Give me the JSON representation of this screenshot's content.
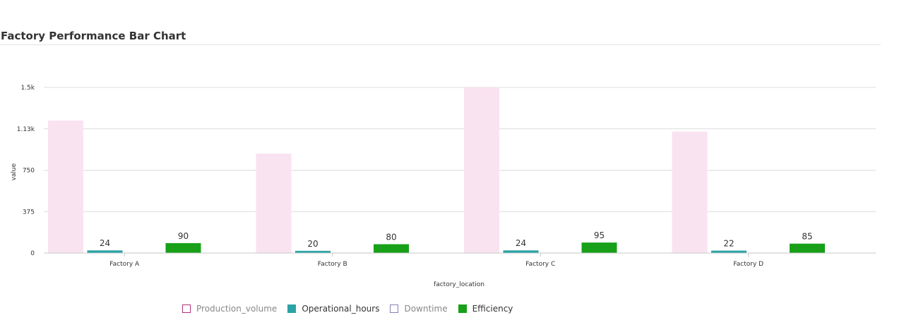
{
  "chart_data": {
    "type": "bar",
    "title": "Factory Performance Bar Chart",
    "xlabel": "factory_location",
    "ylabel": "value",
    "categories": [
      "Factory A",
      "Factory B",
      "Factory C",
      "Factory D"
    ],
    "ylim": [
      0,
      1500
    ],
    "yticks": [
      {
        "value": 0,
        "label": "0"
      },
      {
        "value": 375,
        "label": "375"
      },
      {
        "value": 750,
        "label": "750"
      },
      {
        "value": 1125,
        "label": "1.13k"
      },
      {
        "value": 1500,
        "label": "1.5k"
      }
    ],
    "grid": true,
    "legend_position": "bottom",
    "series": [
      {
        "name": "Production_volume",
        "values": [
          1200,
          900,
          1500,
          1100
        ],
        "color": "#f9e3f1",
        "legend_color": "#b0307a",
        "show_labels": false,
        "inactive": true
      },
      {
        "name": "Operational_hours",
        "values": [
          24,
          20,
          24,
          22
        ],
        "color": "#2ba3a6",
        "legend_color": "#2ba3a6",
        "show_labels": true,
        "inactive": false
      },
      {
        "name": "Downtime",
        "values": [
          2,
          1,
          2,
          2
        ],
        "color": "#f0eef8",
        "legend_color": "#8a7fb0",
        "show_labels": false,
        "inactive": true
      },
      {
        "name": "Efficiency",
        "values": [
          90,
          80,
          95,
          85
        ],
        "color": "#18a018",
        "legend_color": "#18a018",
        "show_labels": true,
        "inactive": false
      }
    ]
  }
}
